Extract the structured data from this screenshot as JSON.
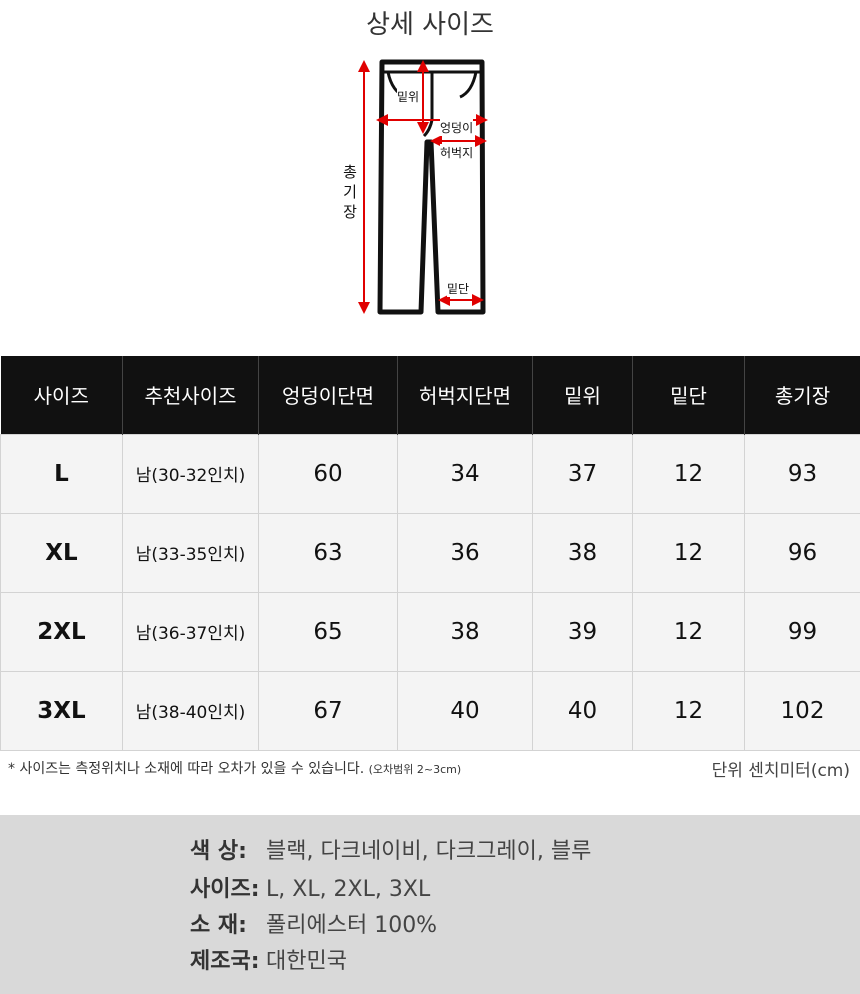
{
  "title": "상세 사이즈",
  "diagram": {
    "rise": "밑위",
    "hip": "엉덩이",
    "thigh": "허벅지",
    "total_length": [
      "총",
      "기",
      "장"
    ],
    "hem": "밑단",
    "arrow_color": "#e00000"
  },
  "table": {
    "headers": [
      "사이즈",
      "추천사이즈",
      "엉덩이단면",
      "허벅지단면",
      "밑위",
      "밑단",
      "총기장"
    ],
    "rows": [
      [
        "L",
        "남(30-32인치)",
        "60",
        "34",
        "37",
        "12",
        "93"
      ],
      [
        "XL",
        "남(33-35인치)",
        "63",
        "36",
        "38",
        "12",
        "96"
      ],
      [
        "2XL",
        "남(36-37인치)",
        "65",
        "38",
        "39",
        "12",
        "99"
      ],
      [
        "3XL",
        "남(38-40인치)",
        "67",
        "40",
        "40",
        "12",
        "102"
      ]
    ]
  },
  "note": {
    "text": "* 사이즈는 측정위치나 소재에 따라 오차가 있을 수 있습니다.",
    "range": "(오차범위 2~3cm)",
    "unit": "단위 센치미터(cm)"
  },
  "info": [
    {
      "label": "색   상:",
      "value": "블랙, 다크네이비, 다크그레이, 블루"
    },
    {
      "label": "사이즈:",
      "value": "L, XL, 2XL, 3XL"
    },
    {
      "label": "소   재:",
      "value": "폴리에스터 100%"
    },
    {
      "label": "제조국:",
      "value": "대한민국"
    }
  ]
}
